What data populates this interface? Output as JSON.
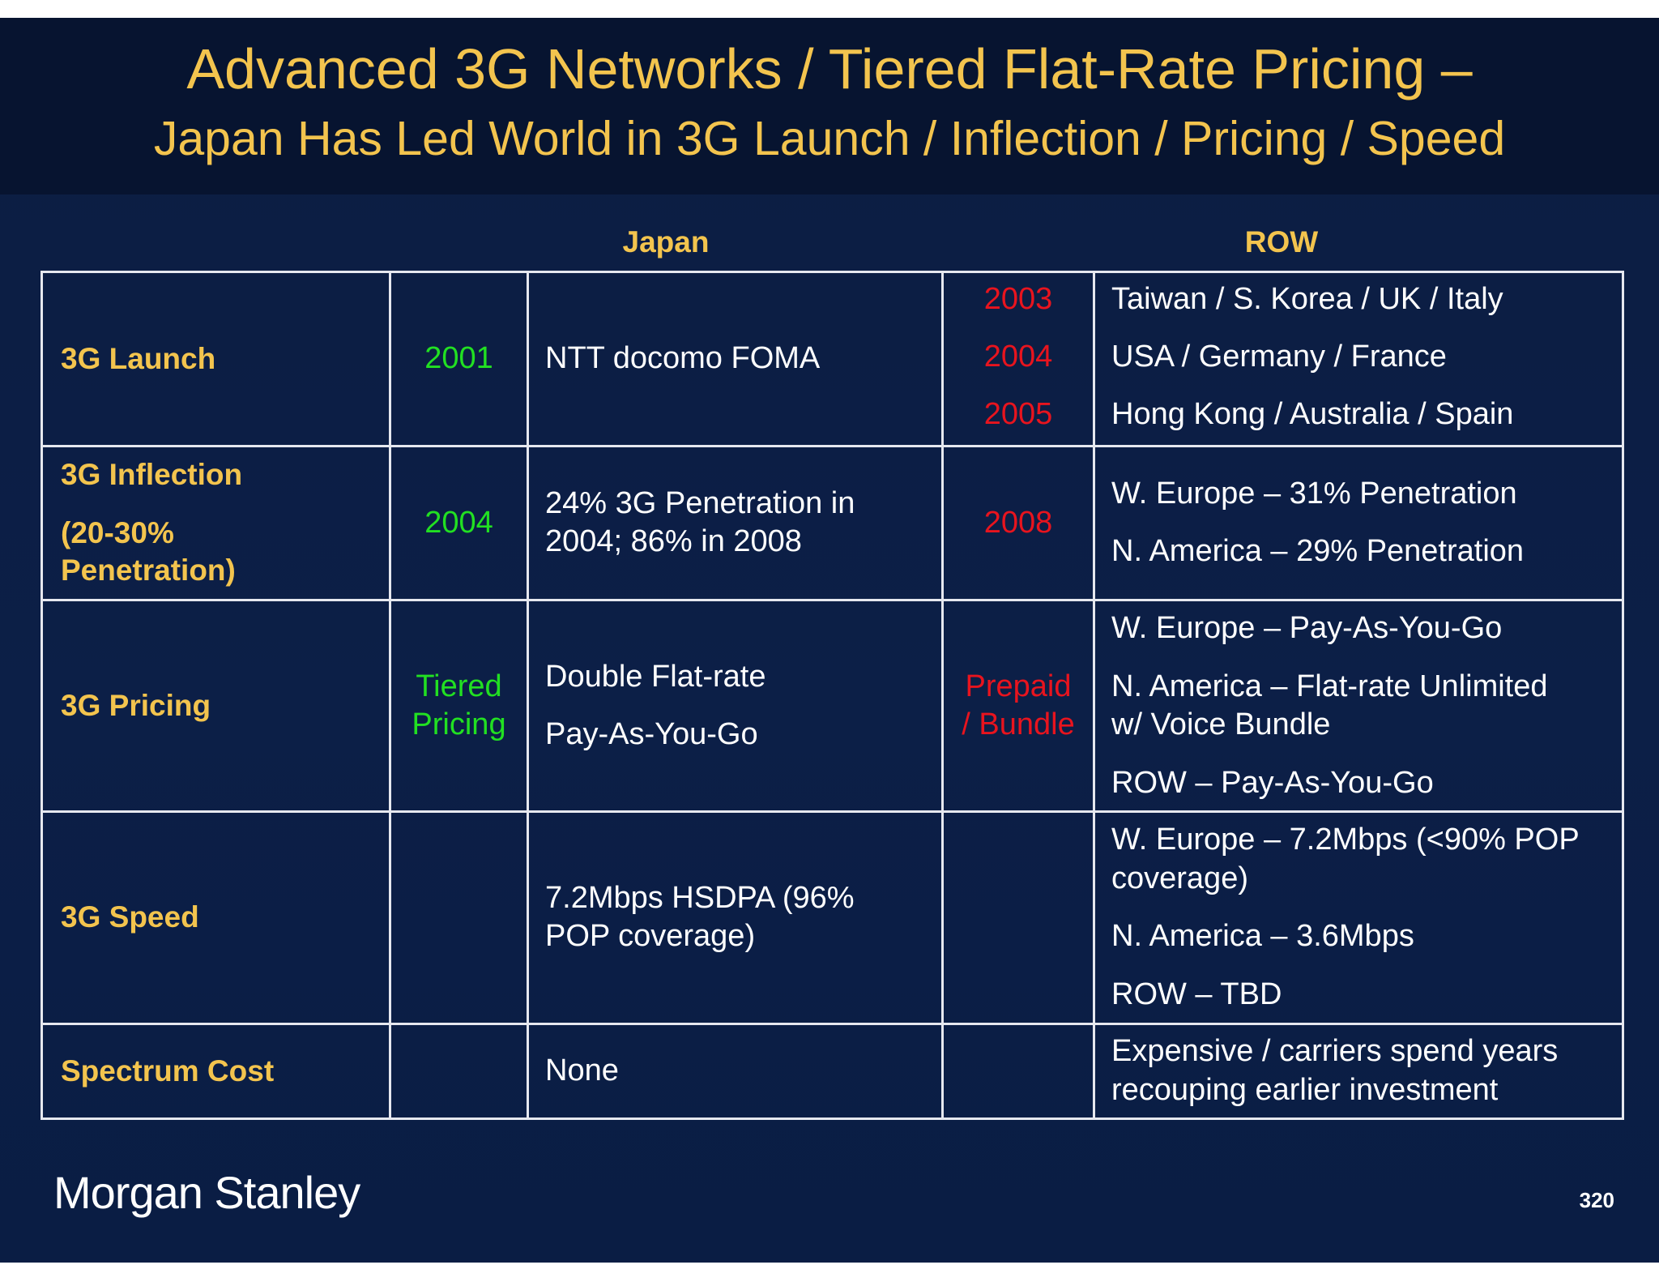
{
  "title": {
    "line1": "Advanced 3G Networks / Tiered Flat-Rate Pricing –",
    "line2": "Japan Has Led World in 3G Launch / Inflection / Pricing / Speed"
  },
  "table": {
    "headers": {
      "japan": "Japan",
      "row": "ROW"
    },
    "rows": [
      {
        "label_lines": [
          "3G Launch"
        ],
        "japan_year_lines": [
          "2001"
        ],
        "japan_text_lines": [
          "NTT docomo FOMA"
        ],
        "row_year_lines": [
          "2003",
          "2004",
          "2005"
        ],
        "row_text_lines": [
          "Taiwan / S. Korea / UK / Italy",
          "USA / Germany / France",
          "Hong Kong / Australia / Spain"
        ]
      },
      {
        "label_lines": [
          "3G Inflection",
          "(20-30%",
          "Penetration)"
        ],
        "japan_year_lines": [
          "2004"
        ],
        "japan_text_lines": [
          "24% 3G Penetration in",
          "2004; 86% in 2008"
        ],
        "row_year_lines": [
          "2008"
        ],
        "row_text_lines": [
          "W. Europe – 31% Penetration",
          "N. America – 29% Penetration"
        ]
      },
      {
        "label_lines": [
          "3G Pricing"
        ],
        "japan_year_lines": [
          "Tiered",
          "Pricing"
        ],
        "japan_text_lines": [
          "Double Flat-rate",
          "Pay-As-You-Go"
        ],
        "row_year_lines": [
          "Prepaid",
          "/ Bundle"
        ],
        "row_text_lines": [
          "W. Europe – Pay-As-You-Go",
          "N. America – Flat-rate Unlimited",
          "w/ Voice Bundle",
          "ROW – Pay-As-You-Go"
        ]
      },
      {
        "label_lines": [
          "3G Speed"
        ],
        "japan_year_lines": [],
        "japan_text_lines": [
          "7.2Mbps HSDPA (96%",
          "POP coverage)"
        ],
        "row_year_lines": [],
        "row_text_lines": [
          "W. Europe – 7.2Mbps (<90% POP",
          "coverage)",
          "N. America – 3.6Mbps",
          "ROW – TBD"
        ]
      },
      {
        "label_lines": [
          "Spectrum Cost"
        ],
        "japan_year_lines": [],
        "japan_text_lines": [
          "None"
        ],
        "row_year_lines": [],
        "row_text_lines": [
          "Expensive / carriers spend years",
          "recouping earlier investment"
        ]
      }
    ]
  },
  "footer": {
    "logo": "Morgan Stanley",
    "page_number": "320"
  },
  "colors": {
    "background": "#0c1f47",
    "title_band": "#071430",
    "gold": "#f3c44e",
    "japan_highlight": "#22e022",
    "row_highlight": "#e8141e",
    "border": "#e6e8ef"
  }
}
